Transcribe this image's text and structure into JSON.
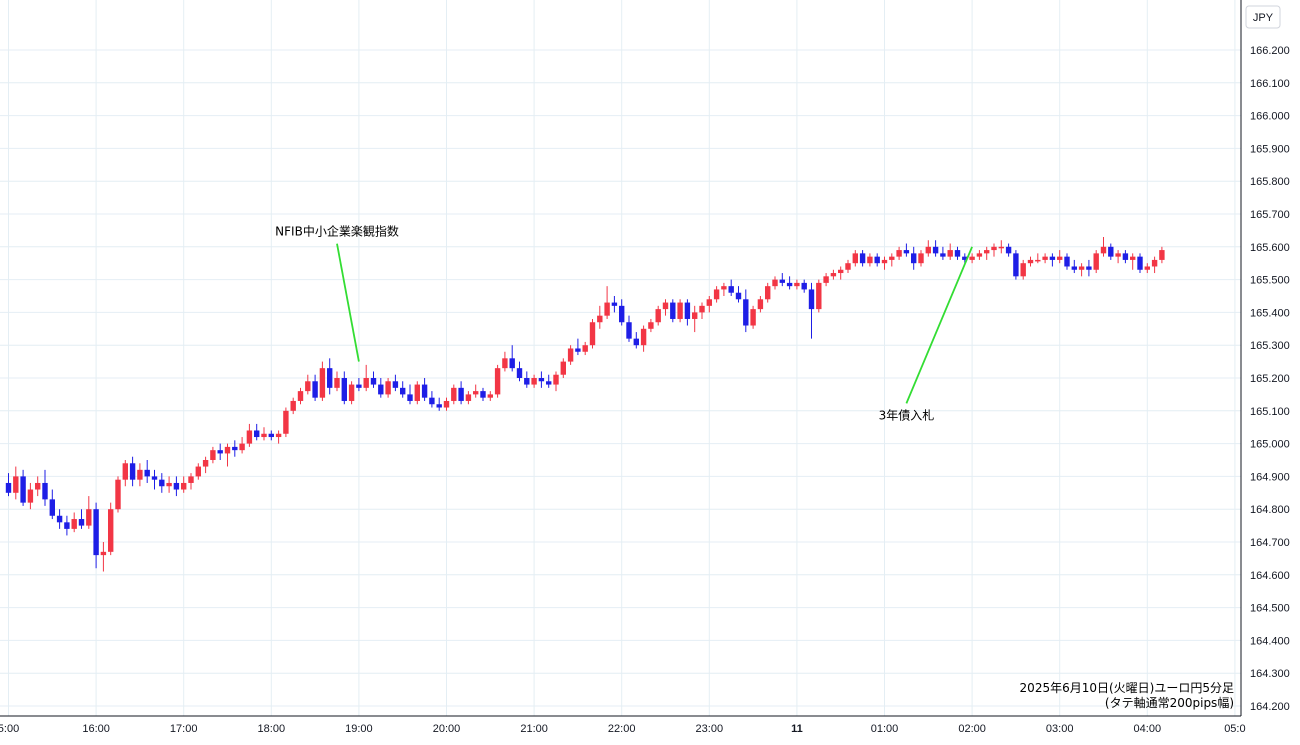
{
  "chart_data": {
    "type": "candlestick",
    "currency_label": "JPY",
    "colors": {
      "up": "#f23645",
      "down": "#1e1ee6",
      "annotation_line": "#33dd33",
      "grid": "#e4eef4",
      "axis": "#131722"
    },
    "ylim": [
      164.2,
      166.3
    ],
    "y_ticks": [
      166.2,
      166.1,
      166.0,
      165.9,
      165.8,
      165.7,
      165.6,
      165.5,
      165.4,
      165.3,
      165.2,
      165.1,
      165.0,
      164.9,
      164.8,
      164.7,
      164.6,
      164.5,
      164.4,
      164.3,
      164.2
    ],
    "y_tick_labels": [
      "166.200",
      "166.100",
      "166.000",
      "165.900",
      "165.800",
      "165.700",
      "165.600",
      "165.500",
      "165.400",
      "165.300",
      "165.200",
      "165.100",
      "165.000",
      "164.900",
      "164.800",
      "164.700",
      "164.600",
      "164.500",
      "164.400",
      "164.300",
      "164.200"
    ],
    "x_ticks": [
      {
        "label": "5:00",
        "bar": 0
      },
      {
        "label": "16:00",
        "bar": 12
      },
      {
        "label": "17:00",
        "bar": 24
      },
      {
        "label": "18:00",
        "bar": 36
      },
      {
        "label": "19:00",
        "bar": 48
      },
      {
        "label": "20:00",
        "bar": 60
      },
      {
        "label": "21:00",
        "bar": 72
      },
      {
        "label": "22:00",
        "bar": 84
      },
      {
        "label": "23:00",
        "bar": 96
      },
      {
        "label": "11",
        "bar": 108,
        "day": true
      },
      {
        "label": "01:00",
        "bar": 120
      },
      {
        "label": "02:00",
        "bar": 132
      },
      {
        "label": "03:00",
        "bar": 144
      },
      {
        "label": "04:00",
        "bar": 156
      },
      {
        "label": "05:0",
        "bar": 168
      }
    ],
    "annotations": [
      {
        "text": "NFIB中小企業楽観指数",
        "bar": 48,
        "price": 165.25,
        "text_bar": 45,
        "text_price": 165.64
      },
      {
        "text": "3年債入札",
        "bar": 132,
        "price": 165.6,
        "text_bar": 123,
        "text_price": 165.08
      }
    ],
    "caption_lines": [
      "2025年6月10日(火曜日)ユーロ円5分足",
      "(タテ軸通常200pips幅)"
    ],
    "candles": [
      [
        164.88,
        164.91,
        164.84,
        164.85
      ],
      [
        164.85,
        164.93,
        164.83,
        164.9
      ],
      [
        164.9,
        164.92,
        164.81,
        164.82
      ],
      [
        164.82,
        164.88,
        164.8,
        164.86
      ],
      [
        164.86,
        164.9,
        164.84,
        164.88
      ],
      [
        164.88,
        164.92,
        164.81,
        164.83
      ],
      [
        164.83,
        164.86,
        164.77,
        164.78
      ],
      [
        164.78,
        164.8,
        164.74,
        164.76
      ],
      [
        164.76,
        164.78,
        164.72,
        164.74
      ],
      [
        164.74,
        164.79,
        164.73,
        164.77
      ],
      [
        164.77,
        164.8,
        164.74,
        164.75
      ],
      [
        164.75,
        164.84,
        164.74,
        164.8
      ],
      [
        164.8,
        164.82,
        164.62,
        164.66
      ],
      [
        164.66,
        164.7,
        164.61,
        164.67
      ],
      [
        164.67,
        164.82,
        164.66,
        164.8
      ],
      [
        164.8,
        164.9,
        164.79,
        164.89
      ],
      [
        164.89,
        164.95,
        164.87,
        164.94
      ],
      [
        164.94,
        164.96,
        164.87,
        164.89
      ],
      [
        164.89,
        164.94,
        164.87,
        164.92
      ],
      [
        164.92,
        164.95,
        164.88,
        164.9
      ],
      [
        164.9,
        164.92,
        164.86,
        164.89
      ],
      [
        164.89,
        164.91,
        164.85,
        164.87
      ],
      [
        164.87,
        164.9,
        164.85,
        164.88
      ],
      [
        164.88,
        164.9,
        164.84,
        164.86
      ],
      [
        164.86,
        164.9,
        164.85,
        164.88
      ],
      [
        164.88,
        164.91,
        164.86,
        164.9
      ],
      [
        164.9,
        164.94,
        164.89,
        164.93
      ],
      [
        164.93,
        164.96,
        164.91,
        164.95
      ],
      [
        164.95,
        164.99,
        164.94,
        164.98
      ],
      [
        164.98,
        165.0,
        164.95,
        164.97
      ],
      [
        164.97,
        165.0,
        164.93,
        164.99
      ],
      [
        164.99,
        165.01,
        164.96,
        164.98
      ],
      [
        164.98,
        165.02,
        164.97,
        165.0
      ],
      [
        165.0,
        165.06,
        164.99,
        165.04
      ],
      [
        165.04,
        165.06,
        165.01,
        165.02
      ],
      [
        165.02,
        165.05,
        165.01,
        165.03
      ],
      [
        165.03,
        165.04,
        165.01,
        165.02
      ],
      [
        165.02,
        165.04,
        165.0,
        165.03
      ],
      [
        165.03,
        165.11,
        165.02,
        165.1
      ],
      [
        165.1,
        165.14,
        165.09,
        165.13
      ],
      [
        165.13,
        165.17,
        165.12,
        165.16
      ],
      [
        165.16,
        165.21,
        165.15,
        165.19
      ],
      [
        165.19,
        165.21,
        165.13,
        165.14
      ],
      [
        165.14,
        165.25,
        165.13,
        165.23
      ],
      [
        165.23,
        165.26,
        165.15,
        165.17
      ],
      [
        165.17,
        165.22,
        165.16,
        165.2
      ],
      [
        165.2,
        165.22,
        165.12,
        165.13
      ],
      [
        165.13,
        165.19,
        165.12,
        165.18
      ],
      [
        165.18,
        165.2,
        165.16,
        165.17
      ],
      [
        165.17,
        165.24,
        165.16,
        165.2
      ],
      [
        165.2,
        165.22,
        165.17,
        165.18
      ],
      [
        165.18,
        165.2,
        165.14,
        165.15
      ],
      [
        165.15,
        165.2,
        165.14,
        165.19
      ],
      [
        165.19,
        165.21,
        165.16,
        165.17
      ],
      [
        165.17,
        165.19,
        165.14,
        165.15
      ],
      [
        165.15,
        165.18,
        165.12,
        165.13
      ],
      [
        165.13,
        165.19,
        165.12,
        165.18
      ],
      [
        165.18,
        165.2,
        165.13,
        165.14
      ],
      [
        165.14,
        165.16,
        165.11,
        165.12
      ],
      [
        165.12,
        165.14,
        165.1,
        165.11
      ],
      [
        165.11,
        165.14,
        165.1,
        165.13
      ],
      [
        165.13,
        165.18,
        165.12,
        165.17
      ],
      [
        165.17,
        165.19,
        165.12,
        165.13
      ],
      [
        165.13,
        165.16,
        165.12,
        165.15
      ],
      [
        165.15,
        165.18,
        165.14,
        165.16
      ],
      [
        165.16,
        165.17,
        165.13,
        165.14
      ],
      [
        165.14,
        165.16,
        165.13,
        165.15
      ],
      [
        165.15,
        165.24,
        165.14,
        165.23
      ],
      [
        165.23,
        165.28,
        165.22,
        165.26
      ],
      [
        165.26,
        165.3,
        165.22,
        165.23
      ],
      [
        165.23,
        165.25,
        165.19,
        165.2
      ],
      [
        165.2,
        165.22,
        165.17,
        165.18
      ],
      [
        165.18,
        165.21,
        165.17,
        165.2
      ],
      [
        165.2,
        165.22,
        165.17,
        165.19
      ],
      [
        165.19,
        165.21,
        165.17,
        165.18
      ],
      [
        165.18,
        165.22,
        165.16,
        165.21
      ],
      [
        165.21,
        165.26,
        165.2,
        165.25
      ],
      [
        165.25,
        165.3,
        165.24,
        165.29
      ],
      [
        165.29,
        165.32,
        165.27,
        165.28
      ],
      [
        165.28,
        165.31,
        165.27,
        165.3
      ],
      [
        165.3,
        165.38,
        165.29,
        165.37
      ],
      [
        165.37,
        165.42,
        165.35,
        165.39
      ],
      [
        165.39,
        165.48,
        165.38,
        165.43
      ],
      [
        165.43,
        165.45,
        165.4,
        165.42
      ],
      [
        165.42,
        165.44,
        165.36,
        165.37
      ],
      [
        165.37,
        165.39,
        165.31,
        165.32
      ],
      [
        165.32,
        165.34,
        165.29,
        165.3
      ],
      [
        165.3,
        165.36,
        165.28,
        165.35
      ],
      [
        165.35,
        165.38,
        165.34,
        165.37
      ],
      [
        165.37,
        165.42,
        165.36,
        165.41
      ],
      [
        165.41,
        165.44,
        165.39,
        165.43
      ],
      [
        165.43,
        165.44,
        165.37,
        165.38
      ],
      [
        165.38,
        165.44,
        165.37,
        165.43
      ],
      [
        165.43,
        165.44,
        165.36,
        165.38
      ],
      [
        165.38,
        165.42,
        165.34,
        165.4
      ],
      [
        165.4,
        165.43,
        165.38,
        165.42
      ],
      [
        165.42,
        165.45,
        165.4,
        165.44
      ],
      [
        165.44,
        165.48,
        165.43,
        165.47
      ],
      [
        165.47,
        165.49,
        165.45,
        165.48
      ],
      [
        165.48,
        165.5,
        165.45,
        165.46
      ],
      [
        165.46,
        165.48,
        165.43,
        165.44
      ],
      [
        165.44,
        165.47,
        165.34,
        165.36
      ],
      [
        165.36,
        165.42,
        165.35,
        165.41
      ],
      [
        165.41,
        165.45,
        165.4,
        165.44
      ],
      [
        165.44,
        165.49,
        165.43,
        165.48
      ],
      [
        165.48,
        165.51,
        165.47,
        165.5
      ],
      [
        165.5,
        165.52,
        165.48,
        165.49
      ],
      [
        165.49,
        165.51,
        165.47,
        165.48
      ],
      [
        165.48,
        165.5,
        165.47,
        165.49
      ],
      [
        165.49,
        165.5,
        165.46,
        165.47
      ],
      [
        165.47,
        165.49,
        165.32,
        165.41
      ],
      [
        165.41,
        165.5,
        165.4,
        165.49
      ],
      [
        165.49,
        165.52,
        165.48,
        165.51
      ],
      [
        165.51,
        165.53,
        165.5,
        165.52
      ],
      [
        165.52,
        165.54,
        165.5,
        165.53
      ],
      [
        165.53,
        165.56,
        165.52,
        165.55
      ],
      [
        165.55,
        165.59,
        165.54,
        165.58
      ],
      [
        165.58,
        165.59,
        165.54,
        165.55
      ],
      [
        165.55,
        165.58,
        165.54,
        165.57
      ],
      [
        165.57,
        165.58,
        165.54,
        165.55
      ],
      [
        165.55,
        165.57,
        165.53,
        165.56
      ],
      [
        165.56,
        165.58,
        165.54,
        165.57
      ],
      [
        165.57,
        165.6,
        165.56,
        165.59
      ],
      [
        165.59,
        165.61,
        165.57,
        165.58
      ],
      [
        165.58,
        165.6,
        165.53,
        165.55
      ],
      [
        165.55,
        165.59,
        165.54,
        165.58
      ],
      [
        165.58,
        165.62,
        165.57,
        165.6
      ],
      [
        165.6,
        165.62,
        165.57,
        165.58
      ],
      [
        165.58,
        165.6,
        165.56,
        165.57
      ],
      [
        165.57,
        165.61,
        165.56,
        165.59
      ],
      [
        165.59,
        165.6,
        165.56,
        165.57
      ],
      [
        165.57,
        165.58,
        165.55,
        165.56
      ],
      [
        165.56,
        165.58,
        165.55,
        165.57
      ],
      [
        165.57,
        165.59,
        165.56,
        165.58
      ],
      [
        165.58,
        165.6,
        165.56,
        165.59
      ],
      [
        165.59,
        165.61,
        165.57,
        165.6
      ],
      [
        165.6,
        165.62,
        165.58,
        165.6
      ],
      [
        165.6,
        165.61,
        165.57,
        165.58
      ],
      [
        165.58,
        165.59,
        165.5,
        165.51
      ],
      [
        165.51,
        165.56,
        165.5,
        165.55
      ],
      [
        165.55,
        165.57,
        165.54,
        165.56
      ],
      [
        165.56,
        165.58,
        165.55,
        165.56
      ],
      [
        165.56,
        165.58,
        165.55,
        165.57
      ],
      [
        165.57,
        165.58,
        165.54,
        165.56
      ],
      [
        165.56,
        165.59,
        165.55,
        165.57
      ],
      [
        165.57,
        165.58,
        165.53,
        165.54
      ],
      [
        165.54,
        165.56,
        165.52,
        165.53
      ],
      [
        165.53,
        165.55,
        165.51,
        165.54
      ],
      [
        165.54,
        165.56,
        165.51,
        165.53
      ],
      [
        165.53,
        165.59,
        165.52,
        165.58
      ],
      [
        165.58,
        165.63,
        165.57,
        165.6
      ],
      [
        165.6,
        165.61,
        165.56,
        165.57
      ],
      [
        165.57,
        165.59,
        165.55,
        165.58
      ],
      [
        165.58,
        165.59,
        165.55,
        165.56
      ],
      [
        165.56,
        165.58,
        165.53,
        165.57
      ],
      [
        165.57,
        165.58,
        165.52,
        165.53
      ],
      [
        165.53,
        165.55,
        165.52,
        165.54
      ],
      [
        165.54,
        165.57,
        165.52,
        165.56
      ],
      [
        165.56,
        165.6,
        165.55,
        165.59
      ]
    ]
  }
}
